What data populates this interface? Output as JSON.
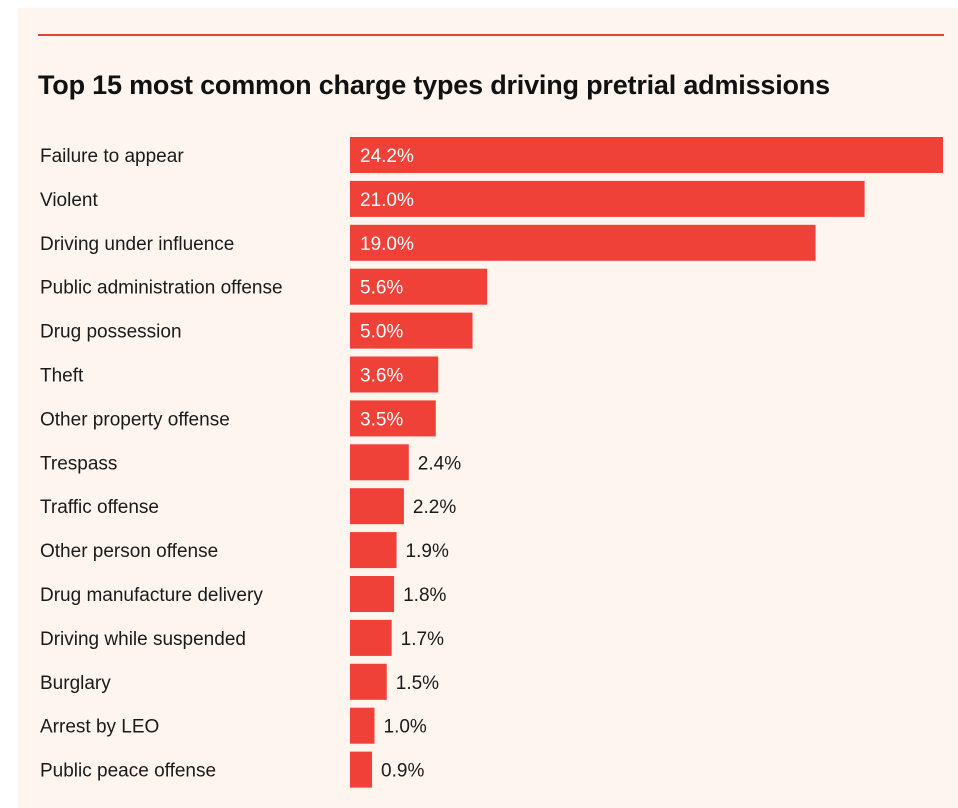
{
  "colors": {
    "background": "#fdf5ee",
    "bar": "#ef4138",
    "rule": "#ef4138",
    "text": "#1a1a1a",
    "label_inside": "#ffffff",
    "label_outside": "#1a1a1a"
  },
  "chart_data": {
    "type": "bar",
    "orientation": "horizontal",
    "title": "Top 15 most common charge types driving pretrial admissions",
    "xlabel": "",
    "ylabel": "",
    "unit": "%",
    "grid": false,
    "legend": "none",
    "xlim": [
      0,
      24.2
    ],
    "categories": [
      "Failure to appear",
      "Violent",
      "Driving under influence",
      "Public administration offense",
      "Drug possession",
      "Theft",
      "Other property offense",
      "Trespass",
      "Traffic offense",
      "Other person offense",
      "Drug manufacture delivery",
      "Driving while suspended",
      "Burglary",
      "Arrest by LEO",
      "Public peace offense"
    ],
    "values": [
      24.2,
      21.0,
      19.0,
      5.6,
      5.0,
      3.6,
      3.5,
      2.4,
      2.2,
      1.9,
      1.8,
      1.7,
      1.5,
      1.0,
      0.9
    ],
    "value_labels": [
      "24.2%",
      "21.0%",
      "19.0%",
      "5.6%",
      "5.0%",
      "3.6%",
      "3.5%",
      "2.4%",
      "2.2%",
      "1.9%",
      "1.8%",
      "1.7%",
      "1.5%",
      "1.0%",
      "0.9%"
    ]
  }
}
